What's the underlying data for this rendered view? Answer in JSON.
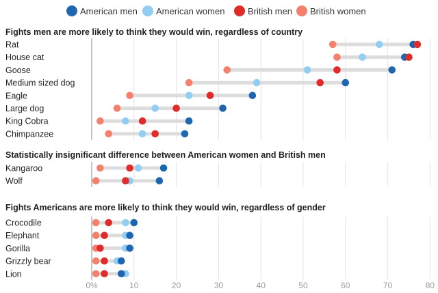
{
  "chart_data": {
    "type": "dumbbell",
    "xlim": [
      0,
      80
    ],
    "x_ticks": [
      0,
      10,
      20,
      30,
      40,
      50,
      60,
      70,
      80
    ],
    "x_tick_labels": [
      "0%",
      "10",
      "20",
      "30",
      "40",
      "50",
      "60",
      "70",
      "80"
    ],
    "legend": [
      {
        "key": "am",
        "label": "American men",
        "color": "#1f66b0"
      },
      {
        "key": "aw",
        "label": "American women",
        "color": "#92cdf2"
      },
      {
        "key": "bm",
        "label": "British men",
        "color": "#e02b2b"
      },
      {
        "key": "bw",
        "label": "British women",
        "color": "#f5806e"
      }
    ],
    "sections": [
      {
        "title": "Fights men are more likely to think they would win, regardless of country",
        "rows": [
          {
            "label": "Rat",
            "am": 76,
            "aw": 68,
            "bm": 77,
            "bw": 57
          },
          {
            "label": "House cat",
            "am": 74,
            "aw": 64,
            "bm": 75,
            "bw": 58
          },
          {
            "label": "Goose",
            "am": 71,
            "aw": 51,
            "bm": 58,
            "bw": 32
          },
          {
            "label": "Medium sized dog",
            "am": 60,
            "aw": 39,
            "bm": 54,
            "bw": 23
          },
          {
            "label": "Eagle",
            "am": 38,
            "aw": 23,
            "bm": 28,
            "bw": 9
          },
          {
            "label": "Large dog",
            "am": 31,
            "aw": 15,
            "bm": 20,
            "bw": 6
          },
          {
            "label": "King Cobra",
            "am": 23,
            "aw": 8,
            "bm": 12,
            "bw": 2
          },
          {
            "label": "Chimpanzee",
            "am": 22,
            "aw": 12,
            "bm": 15,
            "bw": 4
          }
        ]
      },
      {
        "title": "Statistically insignificant difference between American women and British men",
        "rows": [
          {
            "label": "Kangaroo",
            "am": 17,
            "aw": 11,
            "bm": 9,
            "bw": 2
          },
          {
            "label": "Wolf",
            "am": 16,
            "aw": 9,
            "bm": 8,
            "bw": 1
          }
        ]
      },
      {
        "title": "Fights Americans are more likely to think they would win, regardless of gender",
        "rows": [
          {
            "label": "Crocodile",
            "am": 10,
            "aw": 8,
            "bm": 4,
            "bw": 1
          },
          {
            "label": "Elephant",
            "am": 9,
            "aw": 8,
            "bm": 3,
            "bw": 1
          },
          {
            "label": "Gorilla",
            "am": 9,
            "aw": 8,
            "bm": 2,
            "bw": 1
          },
          {
            "label": "Grizzly bear",
            "am": 7,
            "aw": 6,
            "bm": 3,
            "bw": 1
          },
          {
            "label": "Lion",
            "am": 7,
            "aw": 8,
            "bm": 3,
            "bw": 1
          }
        ]
      }
    ]
  }
}
